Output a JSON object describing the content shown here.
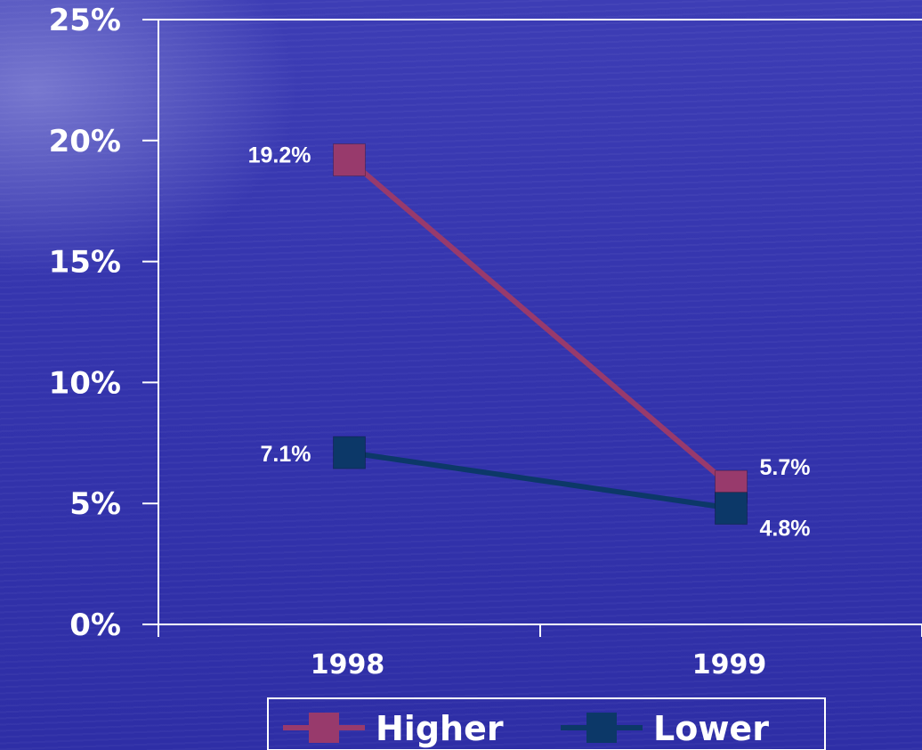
{
  "chart_data": {
    "type": "line",
    "categories": [
      "1998",
      "1999"
    ],
    "series": [
      {
        "name": "Higher",
        "values": [
          19.2,
          5.7
        ],
        "labels": [
          "19.2%",
          "5.7%"
        ],
        "color": "#983a6c"
      },
      {
        "name": "Lower",
        "values": [
          7.1,
          4.8
        ],
        "labels": [
          "7.1%",
          "4.8%"
        ],
        "color": "#0c3868"
      }
    ],
    "ylim": [
      0,
      25
    ],
    "yticks": [
      0,
      5,
      10,
      15,
      20,
      25
    ],
    "ytick_labels": [
      "0%",
      "5%",
      "10%",
      "15%",
      "20%",
      "25%"
    ],
    "grid": false,
    "legend_position": "bottom",
    "axis_color": "#ffffff",
    "text_color": "#ffffff"
  }
}
